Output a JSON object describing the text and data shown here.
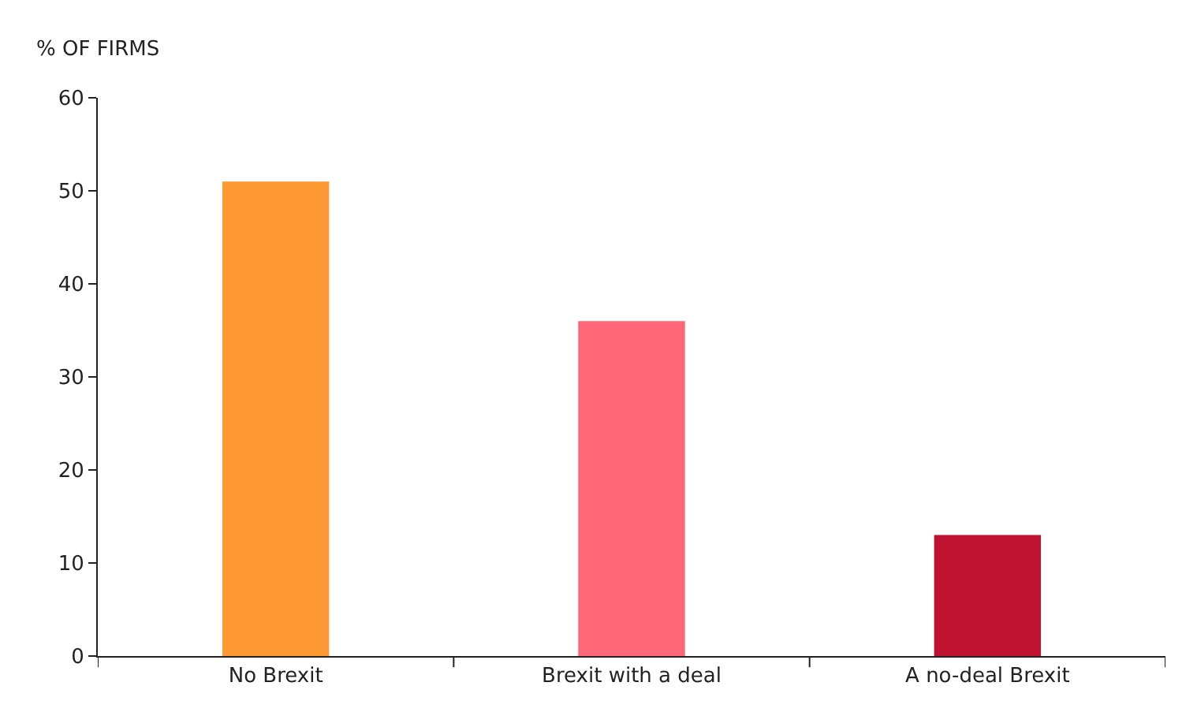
{
  "chart_data": {
    "type": "bar",
    "ylabel": "% OF FIRMS",
    "categories": [
      "No Brexit",
      "Brexit with a deal",
      "A no-deal Brexit"
    ],
    "values": [
      51,
      36,
      13
    ],
    "colors": [
      "#ff9933",
      "#ff6677",
      "#be1230"
    ],
    "ylim": [
      0,
      60
    ],
    "yticks": [
      0,
      10,
      20,
      30,
      40,
      50,
      60
    ]
  }
}
